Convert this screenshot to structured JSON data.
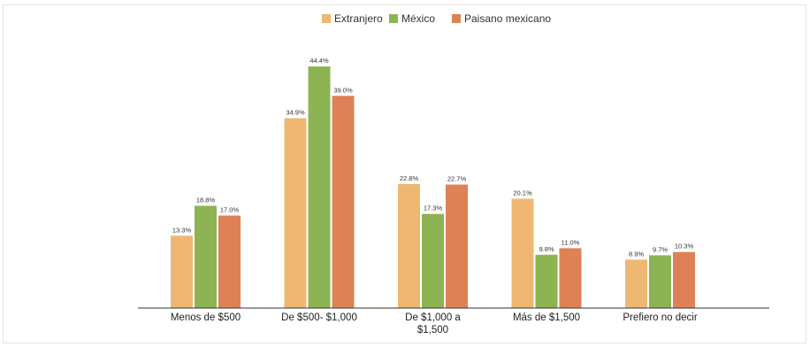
{
  "chart_data": {
    "type": "bar",
    "title": "",
    "xlabel": "",
    "ylabel": "",
    "ylim": [
      0,
      48
    ],
    "grid": false,
    "legend_position": "top-center",
    "categories": [
      [
        "Menos de $500"
      ],
      [
        "De $500- $1,000"
      ],
      [
        "De $1,000 a",
        "$1,500"
      ],
      [
        "Más de $1,500"
      ],
      [
        "Prefiero no decir"
      ]
    ],
    "series": [
      {
        "name": "Extranjero",
        "color": "#EEB872",
        "values": [
          13.3,
          34.9,
          22.8,
          20.1,
          8.9
        ],
        "labels": [
          "13.3%",
          "34.9%",
          "22.8%",
          "20.1%",
          "8.9%"
        ]
      },
      {
        "name": "México",
        "color": "#8DB452",
        "values": [
          18.8,
          44.4,
          17.3,
          9.8,
          9.7
        ],
        "labels": [
          "18.8%",
          "44.4%",
          "17.3%",
          "9.8%",
          "9.7%"
        ]
      },
      {
        "name": "Paisano mexicano",
        "color": "#DE8156",
        "values": [
          17.0,
          39.0,
          22.7,
          11.0,
          10.3
        ],
        "labels": [
          "17.0%",
          "39.0%",
          "22.7%",
          "11.0%",
          "10.3%"
        ]
      }
    ]
  }
}
